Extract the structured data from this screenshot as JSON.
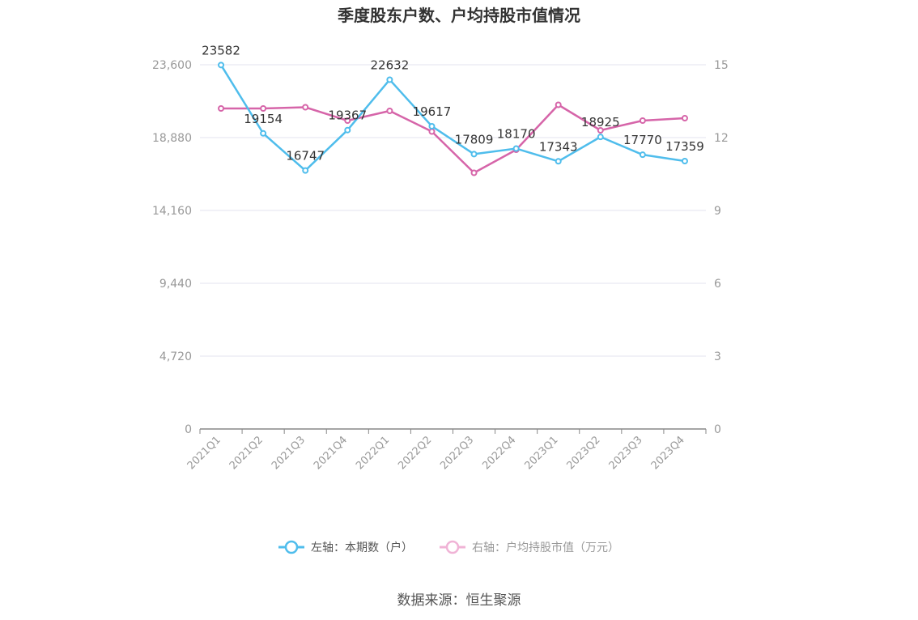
{
  "chart_data": {
    "type": "line",
    "title": "季度股东户数、户均持股市值情况",
    "categories": [
      "2021Q1",
      "2021Q2",
      "2021Q3",
      "2021Q4",
      "2022Q1",
      "2022Q2",
      "2022Q3",
      "2022Q4",
      "2023Q1",
      "2023Q2",
      "2023Q3",
      "2023Q4"
    ],
    "left_axis": {
      "ylim": [
        0,
        23600
      ],
      "ticks": [
        "0",
        "4,720",
        "9,440",
        "14,160",
        "18,880",
        "23,600"
      ],
      "tick_values": [
        0,
        4720,
        9440,
        14160,
        18880,
        23600
      ]
    },
    "right_axis": {
      "ylim": [
        0,
        15
      ],
      "ticks": [
        "0",
        "3",
        "6",
        "9",
        "12",
        "15"
      ],
      "tick_values": [
        0,
        3,
        6,
        9,
        12,
        15
      ]
    },
    "series": [
      {
        "name": "左轴：本期数（户）",
        "axis": "left",
        "color": "#4fbdec",
        "values": [
          23582,
          19154,
          16747,
          19367,
          22632,
          19617,
          17809,
          18170,
          17343,
          18925,
          17770,
          17359
        ],
        "labels": [
          "23582",
          "19154",
          "16747",
          "19367",
          "22632",
          "19617",
          "17809",
          "18170",
          "17343",
          "18925",
          "17770",
          "17359"
        ]
      },
      {
        "name": "右轴：户均持股市值（万元）",
        "axis": "right",
        "color": "#d665a9",
        "values": [
          13.2,
          13.2,
          13.25,
          12.7,
          13.1,
          12.25,
          10.55,
          11.5,
          13.35,
          12.3,
          12.7,
          12.8
        ]
      }
    ],
    "grid": true,
    "legend_position": "bottom"
  },
  "source": "数据来源：恒生聚源"
}
